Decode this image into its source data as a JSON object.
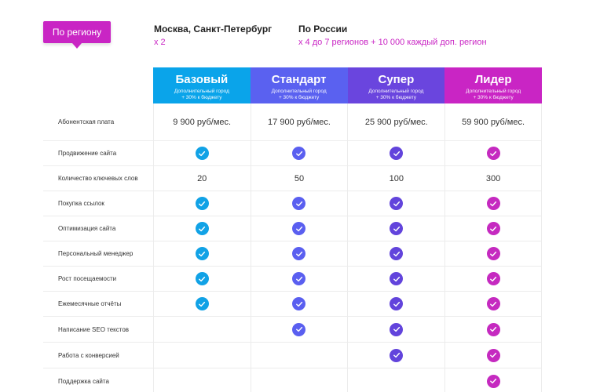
{
  "region_button": "По региону",
  "moscow": {
    "title": "Москва, Санкт-Петербург",
    "multiplier": "x 2"
  },
  "russia": {
    "title": "По России",
    "note": "x 4 до 7 регионов + 10 000 каждый доп. регион"
  },
  "plans": [
    {
      "name": "Базовый",
      "note_line1": "Дополнительный город",
      "note_line2": "+ 30% к бюджету",
      "color": "#0aa4ea",
      "check_color": "#11a2e6"
    },
    {
      "name": "Стандарт",
      "note_line1": "Дополнительный город",
      "note_line2": "+ 30% к бюджету",
      "color": "#5a61f0",
      "check_color": "#5a5ff0"
    },
    {
      "name": "Супер",
      "note_line1": "Дополнительный город",
      "note_line2": "+ 30% к бюджету",
      "color": "#6a45de",
      "check_color": "#6244dc"
    },
    {
      "name": "Лидер",
      "note_line1": "Дополнительный город",
      "note_line2": "+ 30% к бюджету",
      "color": "#c925c4",
      "check_color": "#c52ac0"
    }
  ],
  "rows": [
    {
      "label": "Абонентская плата",
      "values": [
        "9 900 руб/мес.",
        "17 900 руб/мес.",
        "25 900 руб/мес.",
        "59 900 руб/мес."
      ]
    },
    {
      "label": "Продвижение сайта",
      "values": [
        true,
        true,
        true,
        true
      ]
    },
    {
      "label": "Количество ключевых слов",
      "values": [
        "20",
        "50",
        "100",
        "300"
      ]
    },
    {
      "label": "Покупка ссылок",
      "values": [
        true,
        true,
        true,
        true
      ]
    },
    {
      "label": "Оптимизация сайта",
      "values": [
        true,
        true,
        true,
        true
      ]
    },
    {
      "label": "Персональный менеджер",
      "values": [
        true,
        true,
        true,
        true
      ]
    },
    {
      "label": "Рост посещаемости",
      "values": [
        true,
        true,
        true,
        true
      ]
    },
    {
      "label": "Ежемесячные отчёты",
      "values": [
        true,
        true,
        true,
        true
      ]
    },
    {
      "label": "Написание SEO текстов",
      "values": [
        false,
        true,
        true,
        true
      ]
    },
    {
      "label": "Работа с конверсией",
      "values": [
        false,
        false,
        true,
        true
      ]
    },
    {
      "label": "Поддержка сайта",
      "values": [
        false,
        false,
        false,
        true
      ]
    }
  ]
}
